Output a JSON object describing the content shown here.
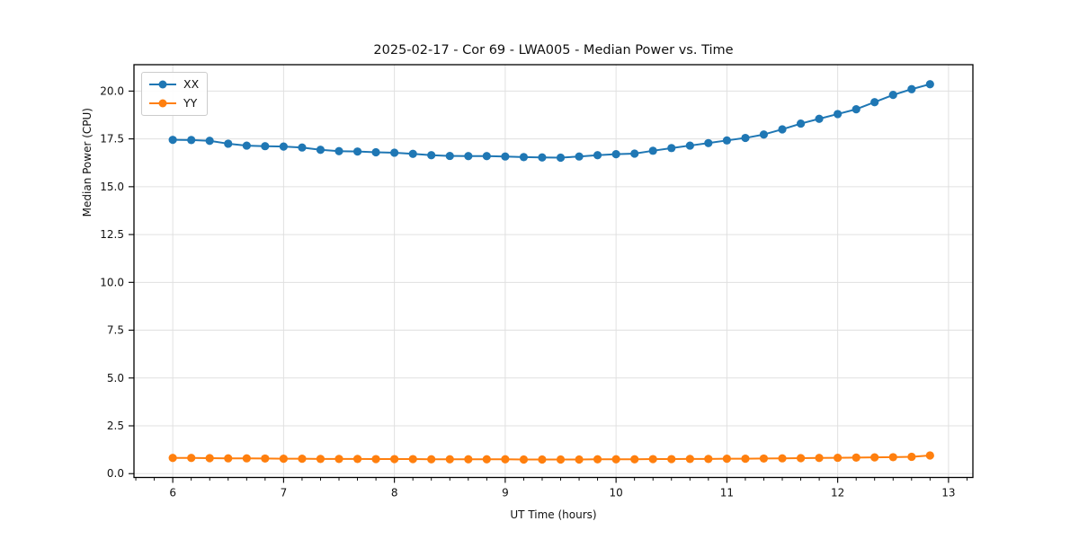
{
  "chart_data": {
    "type": "line",
    "title": "2025-02-17 - Cor 69 - LWA005 - Median Power vs. Time",
    "xlabel": "UT Time (hours)",
    "ylabel": "Median Power (CPU)",
    "xlim": [
      5.65,
      13.22
    ],
    "ylim": [
      -0.2,
      21.38
    ],
    "xticks": [
      6,
      7,
      8,
      9,
      10,
      11,
      12,
      13
    ],
    "xtick_labels": [
      "6",
      "7",
      "8",
      "9",
      "10",
      "11",
      "12",
      "13"
    ],
    "yticks": [
      0.0,
      2.5,
      5.0,
      7.5,
      10.0,
      12.5,
      15.0,
      17.5,
      20.0
    ],
    "ytick_labels": [
      "0.0",
      "2.5",
      "5.0",
      "7.5",
      "10.0",
      "12.5",
      "15.0",
      "17.5",
      "20.0"
    ],
    "grid": true,
    "minor_ticks_x_per_major": 6,
    "legend_position": "upper-left",
    "x": [
      6.0,
      6.167,
      6.333,
      6.5,
      6.667,
      6.833,
      7.0,
      7.167,
      7.333,
      7.5,
      7.667,
      7.833,
      8.0,
      8.167,
      8.333,
      8.5,
      8.667,
      8.833,
      9.0,
      9.167,
      9.333,
      9.5,
      9.667,
      9.833,
      10.0,
      10.167,
      10.333,
      10.5,
      10.667,
      10.833,
      11.0,
      11.167,
      11.333,
      11.5,
      11.667,
      11.833,
      12.0,
      12.167,
      12.333,
      12.5,
      12.667,
      12.833
    ],
    "series": [
      {
        "name": "XX",
        "color": "#1f77b4",
        "values": [
          17.45,
          17.44,
          17.4,
          17.25,
          17.15,
          17.12,
          17.1,
          17.05,
          16.93,
          16.86,
          16.84,
          16.8,
          16.78,
          16.72,
          16.65,
          16.61,
          16.6,
          16.6,
          16.58,
          16.55,
          16.53,
          16.52,
          16.58,
          16.65,
          16.7,
          16.73,
          16.88,
          17.02,
          17.15,
          17.28,
          17.42,
          17.55,
          17.73,
          18.0,
          18.3,
          18.55,
          18.8,
          19.05,
          19.42,
          19.8,
          20.1,
          20.36
        ]
      },
      {
        "name": "YY",
        "color": "#ff7f0e",
        "values": [
          0.82,
          0.82,
          0.81,
          0.8,
          0.8,
          0.79,
          0.78,
          0.78,
          0.77,
          0.77,
          0.77,
          0.76,
          0.76,
          0.76,
          0.75,
          0.75,
          0.75,
          0.75,
          0.75,
          0.74,
          0.74,
          0.74,
          0.74,
          0.75,
          0.75,
          0.75,
          0.76,
          0.76,
          0.77,
          0.77,
          0.78,
          0.78,
          0.79,
          0.8,
          0.81,
          0.82,
          0.83,
          0.84,
          0.85,
          0.86,
          0.88,
          0.95
        ]
      }
    ],
    "style": {
      "grid_color": "#e0e0e0",
      "spine_color": "#000000",
      "tick_color": "#000000",
      "background": "#ffffff"
    }
  }
}
